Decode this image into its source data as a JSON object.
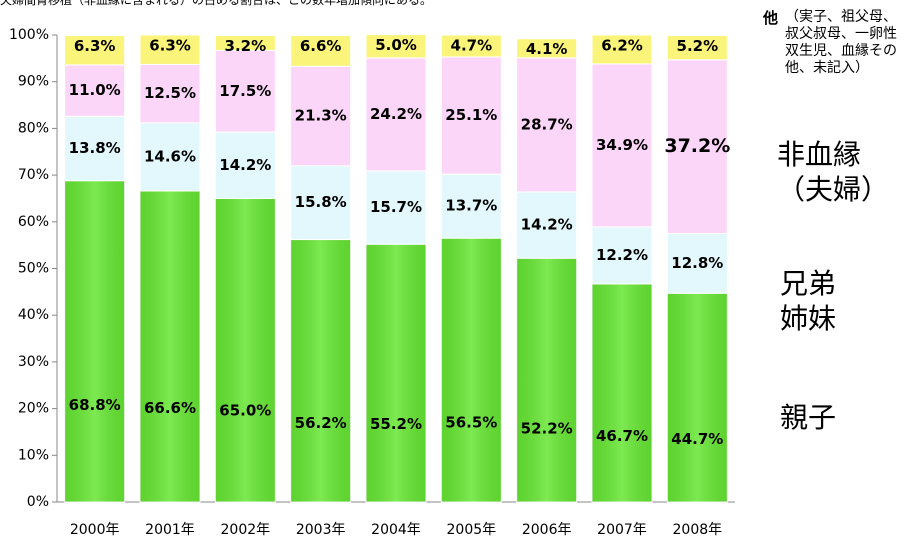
{
  "chart_data": {
    "type": "stacked_bar",
    "subtitle": "夫婦間腎移植（非血縁に含まれる）の占める割合は、この数年増加傾向にある。",
    "categories": [
      "2000年",
      "2001年",
      "2002年",
      "2003年",
      "2004年",
      "2005年",
      "2006年",
      "2007年",
      "2008年"
    ],
    "series": [
      {
        "name": "親子",
        "color": "#66e633",
        "values": [
          68.8,
          66.6,
          65.0,
          56.2,
          55.2,
          56.5,
          52.2,
          46.7,
          44.7
        ],
        "value_labels": [
          "68.8%",
          "66.6%",
          "65.0%",
          "56.2%",
          "55.2%",
          "56.5%",
          "52.2%",
          "46.7%",
          "44.7%"
        ]
      },
      {
        "name": "兄弟姉妹",
        "color": "#e2f8fc",
        "values": [
          13.8,
          14.6,
          14.2,
          15.8,
          15.7,
          13.7,
          14.2,
          12.2,
          12.8
        ],
        "value_labels": [
          "13.8%",
          "14.6%",
          "14.2%",
          "15.8%",
          "15.7%",
          "13.7%",
          "14.2%",
          "12.2%",
          "12.8%"
        ]
      },
      {
        "name": "非血縁（夫婦）",
        "color": "#fcd6f8",
        "values": [
          11.0,
          12.5,
          17.5,
          21.3,
          24.2,
          25.1,
          28.7,
          34.9,
          37.2
        ],
        "value_labels": [
          "11.0%",
          "12.5%",
          "17.5%",
          "21.3%",
          "24.2%",
          "25.1%",
          "28.7%",
          "34.9%",
          "37.2%"
        ]
      },
      {
        "name": "他",
        "note": "（実子、祖父母、叔父叔母、一卵性双生児、血縁その他、未記入）",
        "color": "#fbf47a",
        "values": [
          6.3,
          6.3,
          3.2,
          6.6,
          5.0,
          4.7,
          4.1,
          6.2,
          5.2
        ],
        "value_labels": [
          "6.3%",
          "6.3%",
          "3.2%",
          "6.6%",
          "5.0%",
          "4.7%",
          "4.1%",
          "6.2%",
          "5.2%"
        ]
      }
    ],
    "ylim": [
      0,
      100
    ],
    "yticks": [
      {
        "value": 0,
        "label": "0%"
      },
      {
        "value": 10,
        "label": "10%"
      },
      {
        "value": 20,
        "label": "20%"
      },
      {
        "value": 30,
        "label": "30%"
      },
      {
        "value": 40,
        "label": "40%"
      },
      {
        "value": 50,
        "label": "50%"
      },
      {
        "value": 60,
        "label": "60%"
      },
      {
        "value": 70,
        "label": "70%"
      },
      {
        "value": 80,
        "label": "80%"
      },
      {
        "value": 90,
        "label": "90%"
      },
      {
        "value": 100,
        "label": "100%"
      }
    ]
  }
}
